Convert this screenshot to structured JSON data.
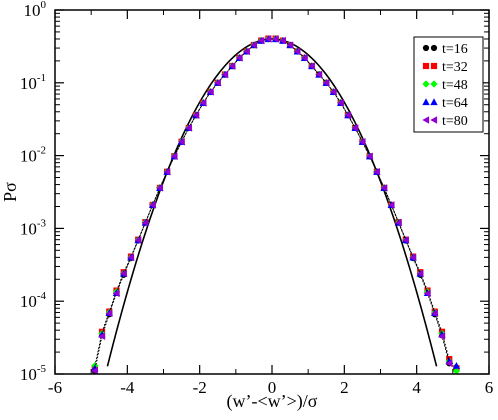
{
  "chart_data": {
    "type": "scatter",
    "xlabel": "(w’-<w’>)/σ",
    "ylabel": "Pσ",
    "xlim": [
      -6,
      6
    ],
    "ylim": [
      1e-05,
      1
    ],
    "yscale": "log",
    "x_ticks": [
      {
        "value": -6,
        "label": "-6"
      },
      {
        "value": -4,
        "label": "-4"
      },
      {
        "value": -2,
        "label": "-2"
      },
      {
        "value": 0,
        "label": "0"
      },
      {
        "value": 2,
        "label": "2"
      },
      {
        "value": 4,
        "label": "4"
      },
      {
        "value": 6,
        "label": "6"
      }
    ],
    "y_ticks": [
      {
        "value": 1,
        "base": "10",
        "exp": "0"
      },
      {
        "value": 0.1,
        "base": "10",
        "exp": "-1"
      },
      {
        "value": 0.01,
        "base": "10",
        "exp": "-2"
      },
      {
        "value": 0.001,
        "base": "10",
        "exp": "-3"
      },
      {
        "value": 0.0001,
        "base": "10",
        "exp": "-4"
      },
      {
        "value": 1e-05,
        "base": "10",
        "exp": "-5"
      }
    ],
    "grid": false,
    "legend_position": "top-right",
    "reference_curve": {
      "kind": "gaussian",
      "mean": 0,
      "std": 1,
      "x_range": [
        -4.55,
        4.55
      ],
      "color": "#000000"
    },
    "x": [
      -4.9,
      -4.7,
      -4.5,
      -4.3,
      -4.1,
      -3.9,
      -3.7,
      -3.5,
      -3.3,
      -3.1,
      -2.9,
      -2.7,
      -2.5,
      -2.3,
      -2.1,
      -1.9,
      -1.7,
      -1.5,
      -1.3,
      -1.1,
      -0.9,
      -0.7,
      -0.5,
      -0.3,
      -0.1,
      0.1,
      0.3,
      0.5,
      0.7,
      0.9,
      1.1,
      1.3,
      1.5,
      1.7,
      1.9,
      2.1,
      2.3,
      2.5,
      2.7,
      2.9,
      3.1,
      3.3,
      3.5,
      3.7,
      3.9,
      4.1,
      4.3,
      4.5,
      4.7,
      4.9,
      5.1
    ],
    "series": [
      {
        "name": "t=16",
        "color": "#000000",
        "marker": "circle",
        "values": [
          1.1e-05,
          3.4e-05,
          6.6e-05,
          0.00013,
          0.00023,
          0.00039,
          0.00068,
          0.0012,
          0.0021,
          0.0036,
          0.006,
          0.0098,
          0.0155,
          0.024,
          0.036,
          0.053,
          0.075,
          0.1,
          0.13,
          0.17,
          0.22,
          0.27,
          0.33,
          0.38,
          0.4,
          0.4,
          0.38,
          0.33,
          0.27,
          0.22,
          0.17,
          0.13,
          0.1,
          0.075,
          0.053,
          0.036,
          0.024,
          0.0155,
          0.0098,
          0.006,
          0.0036,
          0.0021,
          0.0012,
          0.00068,
          0.00039,
          0.00023,
          0.00013,
          6.6e-05,
          3.4e-05,
          1.4e-05,
          null
        ]
      },
      {
        "name": "t=32",
        "color": "#ff0000",
        "marker": "square",
        "values": [
          1.2e-05,
          3.8e-05,
          7.2e-05,
          0.00014,
          0.00025,
          0.00041,
          0.0007,
          0.00122,
          0.0021,
          0.0036,
          0.006,
          0.0098,
          0.0155,
          0.024,
          0.036,
          0.053,
          0.075,
          0.1,
          0.13,
          0.17,
          0.22,
          0.27,
          0.33,
          0.38,
          0.405,
          0.405,
          0.38,
          0.33,
          0.27,
          0.22,
          0.17,
          0.13,
          0.1,
          0.075,
          0.053,
          0.036,
          0.024,
          0.0155,
          0.0098,
          0.006,
          0.0036,
          0.0021,
          0.00122,
          0.0007,
          0.00041,
          0.00025,
          0.00014,
          7.2e-05,
          3.8e-05,
          1.6e-05,
          1.2e-05
        ]
      },
      {
        "name": "t=48",
        "color": "#00ff00",
        "marker": "diamond",
        "values": [
          1.3e-05,
          3.6e-05,
          7e-05,
          0.000135,
          0.00024,
          0.0004,
          0.00069,
          0.00121,
          0.0021,
          0.0036,
          0.006,
          0.0098,
          0.0155,
          0.024,
          0.036,
          0.053,
          0.075,
          0.1,
          0.13,
          0.17,
          0.22,
          0.27,
          0.33,
          0.38,
          0.4,
          0.4,
          0.38,
          0.33,
          0.27,
          0.22,
          0.17,
          0.13,
          0.1,
          0.075,
          0.053,
          0.036,
          0.024,
          0.0155,
          0.0098,
          0.006,
          0.0036,
          0.0021,
          0.00121,
          0.00069,
          0.0004,
          0.00024,
          0.000135,
          7e-05,
          3.6e-05,
          1.5e-05,
          1.1e-05
        ]
      },
      {
        "name": "t=64",
        "color": "#0000ff",
        "marker": "triangle-up",
        "values": [
          1.2e-05,
          3.5e-05,
          6.9e-05,
          0.00013,
          0.00024,
          0.0004,
          0.00069,
          0.0012,
          0.0021,
          0.0036,
          0.006,
          0.0098,
          0.0155,
          0.024,
          0.036,
          0.053,
          0.075,
          0.1,
          0.13,
          0.17,
          0.22,
          0.27,
          0.33,
          0.38,
          0.4,
          0.4,
          0.38,
          0.33,
          0.27,
          0.22,
          0.17,
          0.13,
          0.1,
          0.075,
          0.053,
          0.036,
          0.024,
          0.0155,
          0.0098,
          0.006,
          0.0036,
          0.0021,
          0.0012,
          0.00069,
          0.0004,
          0.00024,
          0.00013,
          6.9e-05,
          3.5e-05,
          1.5e-05,
          1.3e-05
        ]
      },
      {
        "name": "t=80",
        "color": "#9400d3",
        "marker": "triangle-left",
        "values": [
          1.1e-05,
          3.3e-05,
          6.8e-05,
          0.000128,
          0.00024,
          0.0004,
          0.00069,
          0.0012,
          0.0021,
          0.0036,
          0.006,
          0.0098,
          0.0155,
          0.024,
          0.036,
          0.053,
          0.075,
          0.1,
          0.13,
          0.17,
          0.22,
          0.27,
          0.33,
          0.38,
          0.4,
          0.4,
          0.38,
          0.33,
          0.27,
          0.22,
          0.17,
          0.13,
          0.1,
          0.075,
          0.053,
          0.036,
          0.024,
          0.0155,
          0.0098,
          0.006,
          0.0036,
          0.0021,
          0.0012,
          0.00069,
          0.0004,
          0.00024,
          0.000128,
          6.8e-05,
          3.3e-05,
          1.4e-05,
          null
        ]
      }
    ]
  }
}
